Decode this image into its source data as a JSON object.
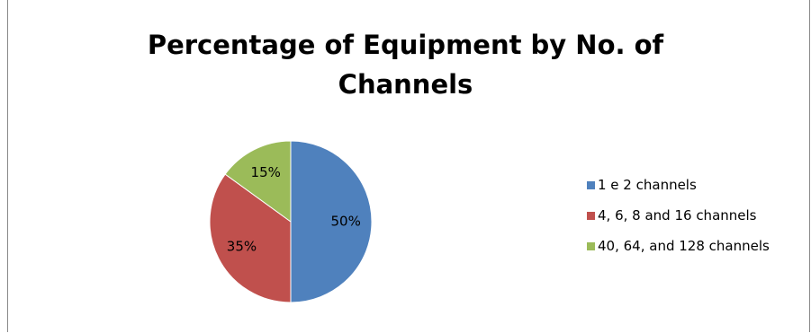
{
  "chart_data": {
    "type": "pie",
    "title_lines": [
      "Percentage of Equipment by No. of",
      "Channels"
    ],
    "legend_position": "right",
    "slices": [
      {
        "name": "1 e 2 channels",
        "value": 50,
        "label": "50%",
        "color": "#4f81bd"
      },
      {
        "name": "4, 6, 8 and 16 channels",
        "value": 35,
        "label": "35%",
        "color": "#c0504d"
      },
      {
        "name": "40, 64, and 128 channels",
        "value": 15,
        "label": "15%",
        "color": "#9bbb59"
      }
    ]
  }
}
